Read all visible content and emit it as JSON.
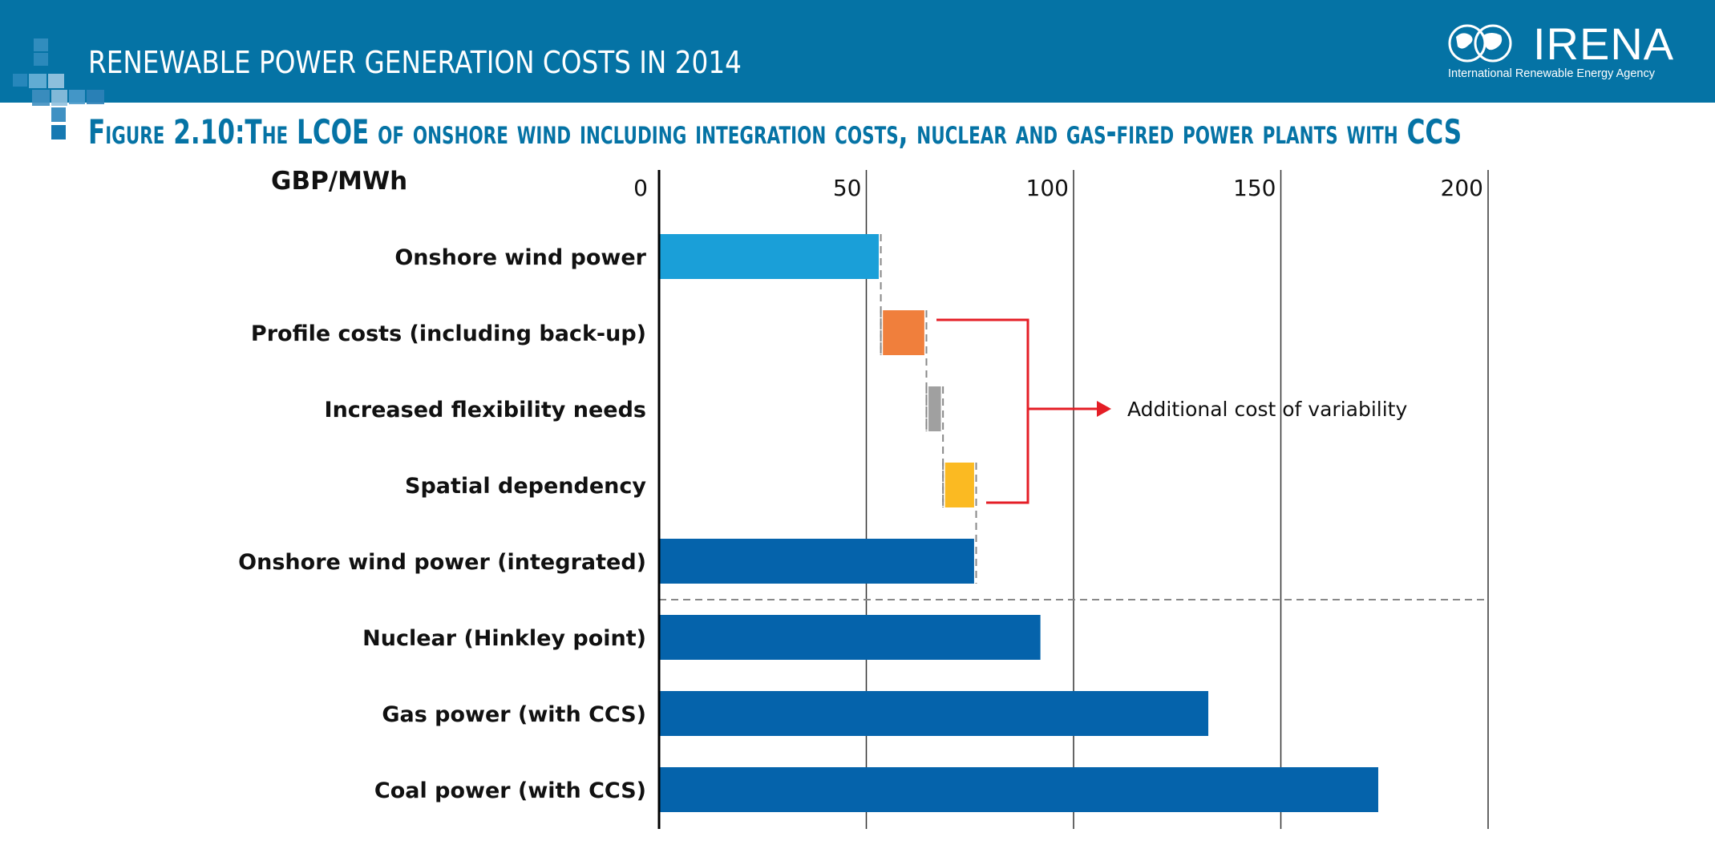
{
  "header": {
    "title": "RENEWABLE POWER GENERATION COSTS IN 2014",
    "logo_word": "IRENA",
    "logo_subtitle": "International Renewable Energy Agency",
    "band_color": "#0573a5"
  },
  "figure_title": "Figure 2.10:The LCOE of onshore wind including integration costs, nuclear and gas-fired power plants with CCS",
  "chart_data": {
    "type": "bar",
    "orientation": "horizontal",
    "unit_label": "GBP/MWh",
    "xlim": [
      0,
      200
    ],
    "xticks": [
      0,
      50,
      100,
      150,
      200
    ],
    "categories": [
      "Onshore wind power",
      "Profile costs (including back-up)",
      "Increased flexibility needs",
      "Spatial dependency",
      "Onshore wind power (integrated)",
      "Nuclear (Hinkley point)",
      "Gas power (with CCS)",
      "Coal power (with CCS)"
    ],
    "bars": [
      {
        "start": 0,
        "end": 53,
        "color": "#1a9fd8"
      },
      {
        "start": 54,
        "end": 64,
        "color": "#f07f3c"
      },
      {
        "start": 65,
        "end": 68,
        "color": "#a0a0a0"
      },
      {
        "start": 69,
        "end": 76,
        "color": "#fbba22"
      },
      {
        "start": 0,
        "end": 76,
        "color": "#0563ab"
      },
      {
        "start": 0,
        "end": 92,
        "color": "#0563ab"
      },
      {
        "start": 0,
        "end": 132.5,
        "color": "#0563ab"
      },
      {
        "start": 0,
        "end": 173.5,
        "color": "#0563ab"
      }
    ],
    "annotation": {
      "text": "Additional cost of variability",
      "color": "#e41e26"
    },
    "grid": true,
    "separator_after_category": 4
  }
}
